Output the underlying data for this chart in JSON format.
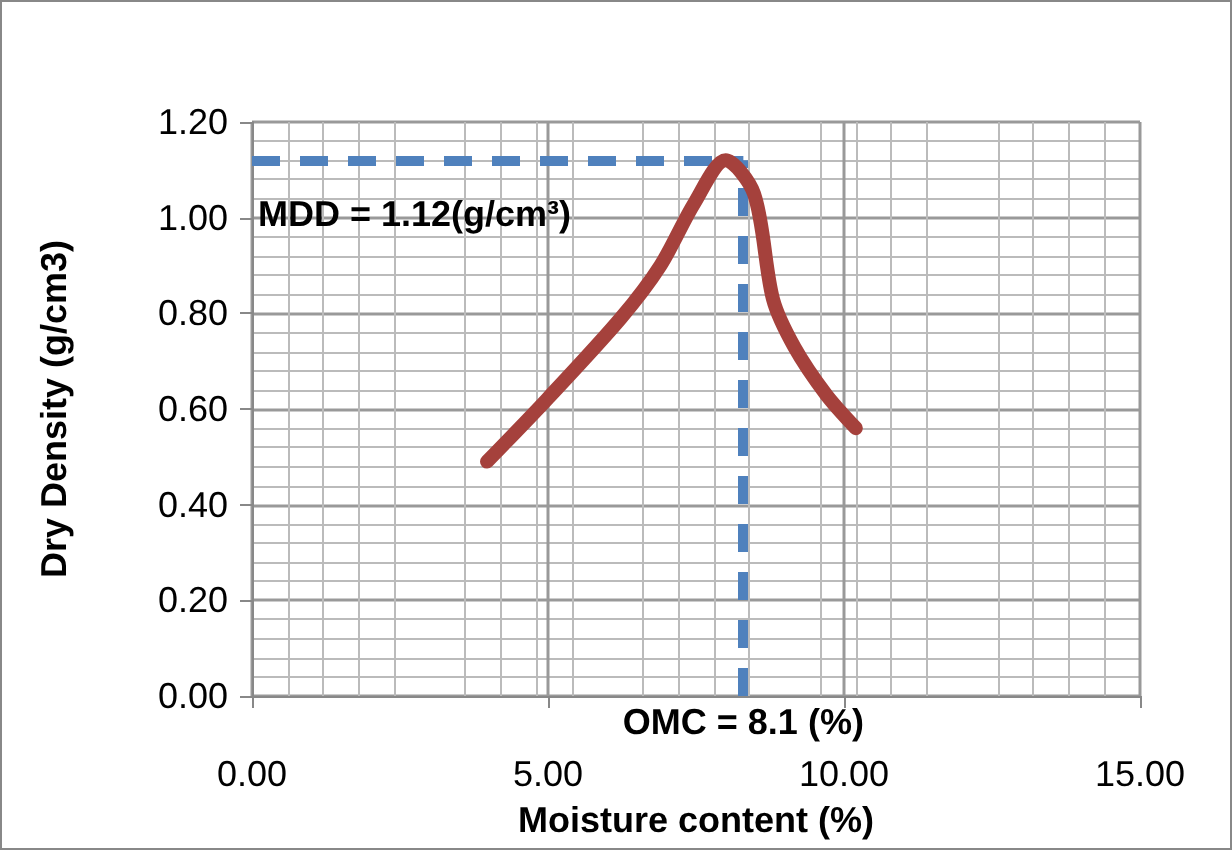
{
  "chart_data": {
    "type": "line",
    "xlabel": "Moisture content (%)",
    "ylabel": "Dry Density (g/cm3)",
    "series": [
      {
        "color": "#a5413c",
        "x": [
          3.97,
          4.98,
          6.23,
          6.9,
          7.47,
          8.0,
          8.48,
          8.8,
          9.16,
          9.7,
          10.2
        ],
        "values": [
          0.49,
          0.62,
          0.79,
          0.9,
          1.03,
          1.12,
          1.05,
          0.83,
          0.73,
          0.63,
          0.56
        ]
      }
    ],
    "xlim": [
      0,
      15
    ],
    "xticks": [
      {
        "value": 0,
        "label": "0.00"
      },
      {
        "value": 5,
        "label": "5.00"
      },
      {
        "value": 10,
        "label": "10.00"
      },
      {
        "value": 15,
        "label": "15.00"
      }
    ],
    "ylim": [
      0,
      1.2
    ],
    "yticks": [
      {
        "value": 0,
        "label": "0.00"
      },
      {
        "value": 0.2,
        "label": "0.20"
      },
      {
        "value": 0.4,
        "label": "0.40"
      },
      {
        "value": 0.6,
        "label": "0.60"
      },
      {
        "value": 0.8,
        "label": "0.80"
      },
      {
        "value": 1.0,
        "label": "1.00"
      },
      {
        "value": 1.2,
        "label": "1.20"
      }
    ],
    "ref_lines": [
      {
        "axis": "y",
        "value": 1.12,
        "color": "#4f81bd",
        "line_style": "dashed"
      },
      {
        "axis": "x",
        "value": 8.3,
        "color": "#4f81bd",
        "line_style": "dashed"
      }
    ],
    "annotations": [
      "MDD = 1.12(g/cm³)",
      "OMC = 8.1 (%)"
    ],
    "grid": true,
    "line_style": "solid"
  }
}
